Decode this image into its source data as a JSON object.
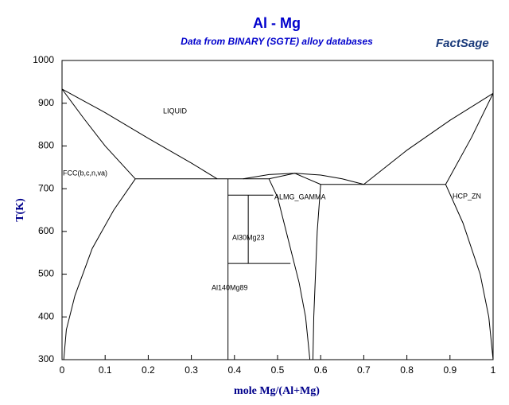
{
  "chart_data": {
    "type": "line",
    "title": "Al - Mg",
    "subtitle": "Data from BINARY (SGTE) alloy databases",
    "logo": "FactSage",
    "x_label": "mole Mg/(Al+Mg)",
    "y_label": "T(K)",
    "annotations": [
      "LIQUID",
      "FCC(b,c,n,va)",
      "ALMG_GAMMA",
      "HCP_ZN",
      "Al30Mg23",
      "Al140Mg89"
    ],
    "xlim": [
      0,
      1
    ],
    "xticks": [
      0,
      0.1,
      0.2,
      0.3,
      0.4,
      0.5,
      0.6,
      0.7,
      0.8,
      0.9,
      1
    ],
    "ylim": [
      300,
      1000
    ],
    "yticks": [
      300,
      400,
      500,
      600,
      700,
      800,
      900,
      1000
    ],
    "series": [
      {
        "color": "#000000",
        "x": [
          0,
          0.1,
          0.2,
          0.3,
          0.36
        ],
        "values": [
          933,
          878,
          818,
          760,
          723
        ]
      },
      {
        "color": "#000000",
        "x": [
          0,
          0.05,
          0.1,
          0.17
        ],
        "values": [
          933,
          865,
          800,
          723
        ]
      },
      {
        "color": "#000000",
        "x": [
          0.17,
          0.12,
          0.07,
          0.03,
          0.01,
          0.004
        ],
        "values": [
          723,
          650,
          560,
          450,
          370,
          300
        ]
      },
      {
        "color": "#000000",
        "x": [
          0.17,
          0.48
        ],
        "values": [
          723,
          723
        ]
      },
      {
        "color": "#000000",
        "x": [
          0.42,
          0.48,
          0.54,
          0.6,
          0.65,
          0.7
        ],
        "values": [
          723,
          733,
          736,
          732,
          723,
          710
        ]
      },
      {
        "color": "#000000",
        "x": [
          0.48,
          0.54,
          0.6
        ],
        "values": [
          723,
          736,
          710
        ]
      },
      {
        "color": "#000000",
        "x": [
          0.7,
          0.8,
          0.9,
          1
        ],
        "values": [
          710,
          790,
          860,
          923
        ]
      },
      {
        "color": "#000000",
        "x": [
          1,
          0.95,
          0.89
        ],
        "values": [
          923,
          820,
          710
        ]
      },
      {
        "color": "#000000",
        "x": [
          0.6,
          0.89
        ],
        "values": [
          710,
          710
        ]
      },
      {
        "color": "#000000",
        "x": [
          0.89,
          0.93,
          0.97,
          0.99,
          1
        ],
        "values": [
          710,
          620,
          500,
          400,
          300
        ]
      },
      {
        "color": "#000000",
        "x": [
          0.48,
          0.5,
          0.52,
          0.55,
          0.565,
          0.575
        ],
        "values": [
          723,
          680,
          600,
          480,
          400,
          300
        ]
      },
      {
        "color": "#000000",
        "x": [
          0.6,
          0.592,
          0.588,
          0.584,
          0.582
        ],
        "values": [
          710,
          600,
          500,
          400,
          300
        ]
      },
      {
        "color": "#000000",
        "x": [
          0.385,
          0.385
        ],
        "values": [
          723,
          300
        ]
      },
      {
        "color": "#000000",
        "x": [
          0.385,
          0.49
        ],
        "values": [
          685,
          685
        ]
      },
      {
        "color": "#000000",
        "x": [
          0.385,
          0.53
        ],
        "values": [
          525,
          525
        ]
      },
      {
        "color": "#000000",
        "x": [
          0.432,
          0.432
        ],
        "values": [
          685,
          525
        ]
      }
    ]
  }
}
